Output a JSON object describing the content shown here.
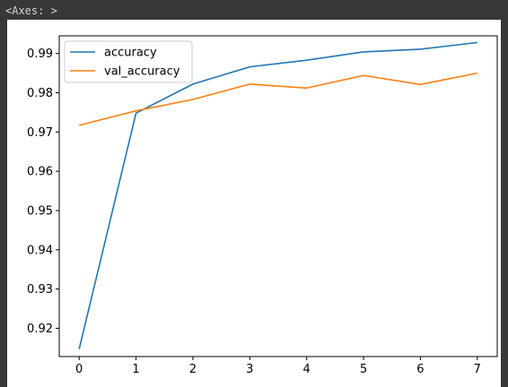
{
  "output": {
    "repr": "<Axes: >"
  },
  "chart_data": {
    "type": "line",
    "title": "",
    "xlabel": "",
    "ylabel": "",
    "x": [
      0,
      1,
      2,
      3,
      4,
      5,
      6,
      7
    ],
    "xlim": [
      -0.35,
      7.35
    ],
    "ylim": [
      0.9128,
      0.9945
    ],
    "xticks": [
      0,
      1,
      2,
      3,
      4,
      5,
      6,
      7
    ],
    "yticks": [
      0.92,
      0.93,
      0.94,
      0.95,
      0.96,
      0.97,
      0.98,
      0.99
    ],
    "grid": false,
    "legend": "top-left",
    "series": [
      {
        "name": "accuracy",
        "color": "#1f77b4",
        "values": [
          0.9147,
          0.9748,
          0.9822,
          0.9866,
          0.9883,
          0.9904,
          0.9911,
          0.9928
        ]
      },
      {
        "name": "val_accuracy",
        "color": "#ff7f0e",
        "values": [
          0.9717,
          0.9754,
          0.9783,
          0.9822,
          0.9812,
          0.9844,
          0.9821,
          0.985
        ]
      }
    ]
  }
}
